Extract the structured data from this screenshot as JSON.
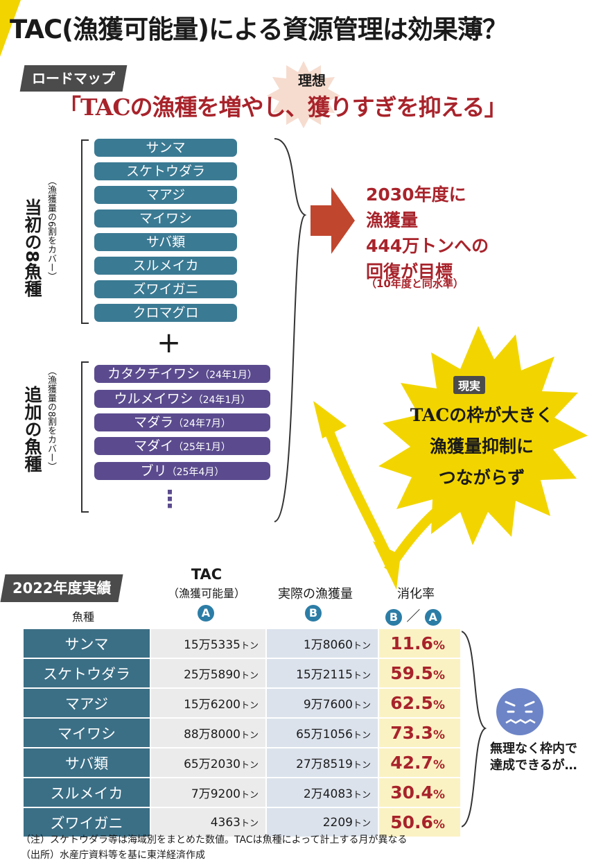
{
  "title": "TAC(漁獲可能量)による資源管理は効果薄？",
  "roadmap_label": "ロードマップ",
  "ideal_label": "理想",
  "slogan": "「TACの漁種を増やし、獲りすぎを抑える」",
  "initial_group": {
    "label": "当初の8魚種",
    "note": "（漁獲量の6割をカバー）",
    "species": [
      "サンマ",
      "スケトウダラ",
      "マアジ",
      "マイワシ",
      "サバ類",
      "スルメイカ",
      "ズワイガニ",
      "クロマグロ"
    ]
  },
  "plus_symbol": "+",
  "added_group": {
    "label": "追加の魚種",
    "note": "（漁獲量の8割をカバー）",
    "species": [
      {
        "name": "カタクチイワシ",
        "date": "（24年1月）"
      },
      {
        "name": "ウルメイワシ",
        "date": "（24年1月）"
      },
      {
        "name": "マダラ",
        "date": "（24年7月）"
      },
      {
        "name": "マダイ",
        "date": "（25年1月）"
      },
      {
        "name": "ブリ",
        "date": "（25年4月）"
      }
    ],
    "more": "⋮"
  },
  "goal": {
    "lines": [
      "2030年度に",
      "漁獲量",
      "444万トンへの",
      "回復が目標"
    ],
    "note": "（10年度と同水準）"
  },
  "reality": {
    "badge": "現実",
    "lines": [
      "TACの枠が大きく",
      "漁獲量抑制に",
      "つながらず"
    ]
  },
  "performance": {
    "label": "2022年度実績",
    "col_species": "魚種",
    "col_tac": "TAC",
    "col_tac_sub": "（漁獲可能量）",
    "col_tac_marker": "A",
    "col_actual": "実際の漁獲量",
    "col_actual_marker": "B",
    "col_rate": "消化率",
    "col_rate_formula": [
      "B",
      "／",
      "A"
    ],
    "unit": "トン",
    "rows": [
      {
        "species": "サンマ",
        "tac": "15万5335",
        "actual": "1万8060",
        "rate": "11.6"
      },
      {
        "species": "スケトウダラ",
        "tac": "25万5890",
        "actual": "15万2115",
        "rate": "59.5"
      },
      {
        "species": "マアジ",
        "tac": "15万6200",
        "actual": "9万7600",
        "rate": "62.5"
      },
      {
        "species": "マイワシ",
        "tac": "88万8000",
        "actual": "65万1056",
        "rate": "73.3"
      },
      {
        "species": "サバ類",
        "tac": "65万2030",
        "actual": "27万8519",
        "rate": "42.7"
      },
      {
        "species": "スルメイカ",
        "tac": "7万9200",
        "actual": "2万4083",
        "rate": "30.4"
      },
      {
        "species": "ズワイガニ",
        "tac": "4363",
        "actual": "2209",
        "rate": "50.6"
      }
    ],
    "pct_sign": "%"
  },
  "comment": [
    "無理なく枠内で",
    "達成できるが…"
  ],
  "footnotes": [
    "（注）スケトウダラ等は海域別をまとめた数値。TACは魚種によって計上する月が異なる",
    "（出所）水産庁資料等を基に東洋経済作成"
  ],
  "colors": {
    "accent_red": "#a8232b",
    "teal": "#3b7a93",
    "purple": "#5b4b8e",
    "yellow": "#f2d500",
    "arrow_red": "#c0462e"
  }
}
